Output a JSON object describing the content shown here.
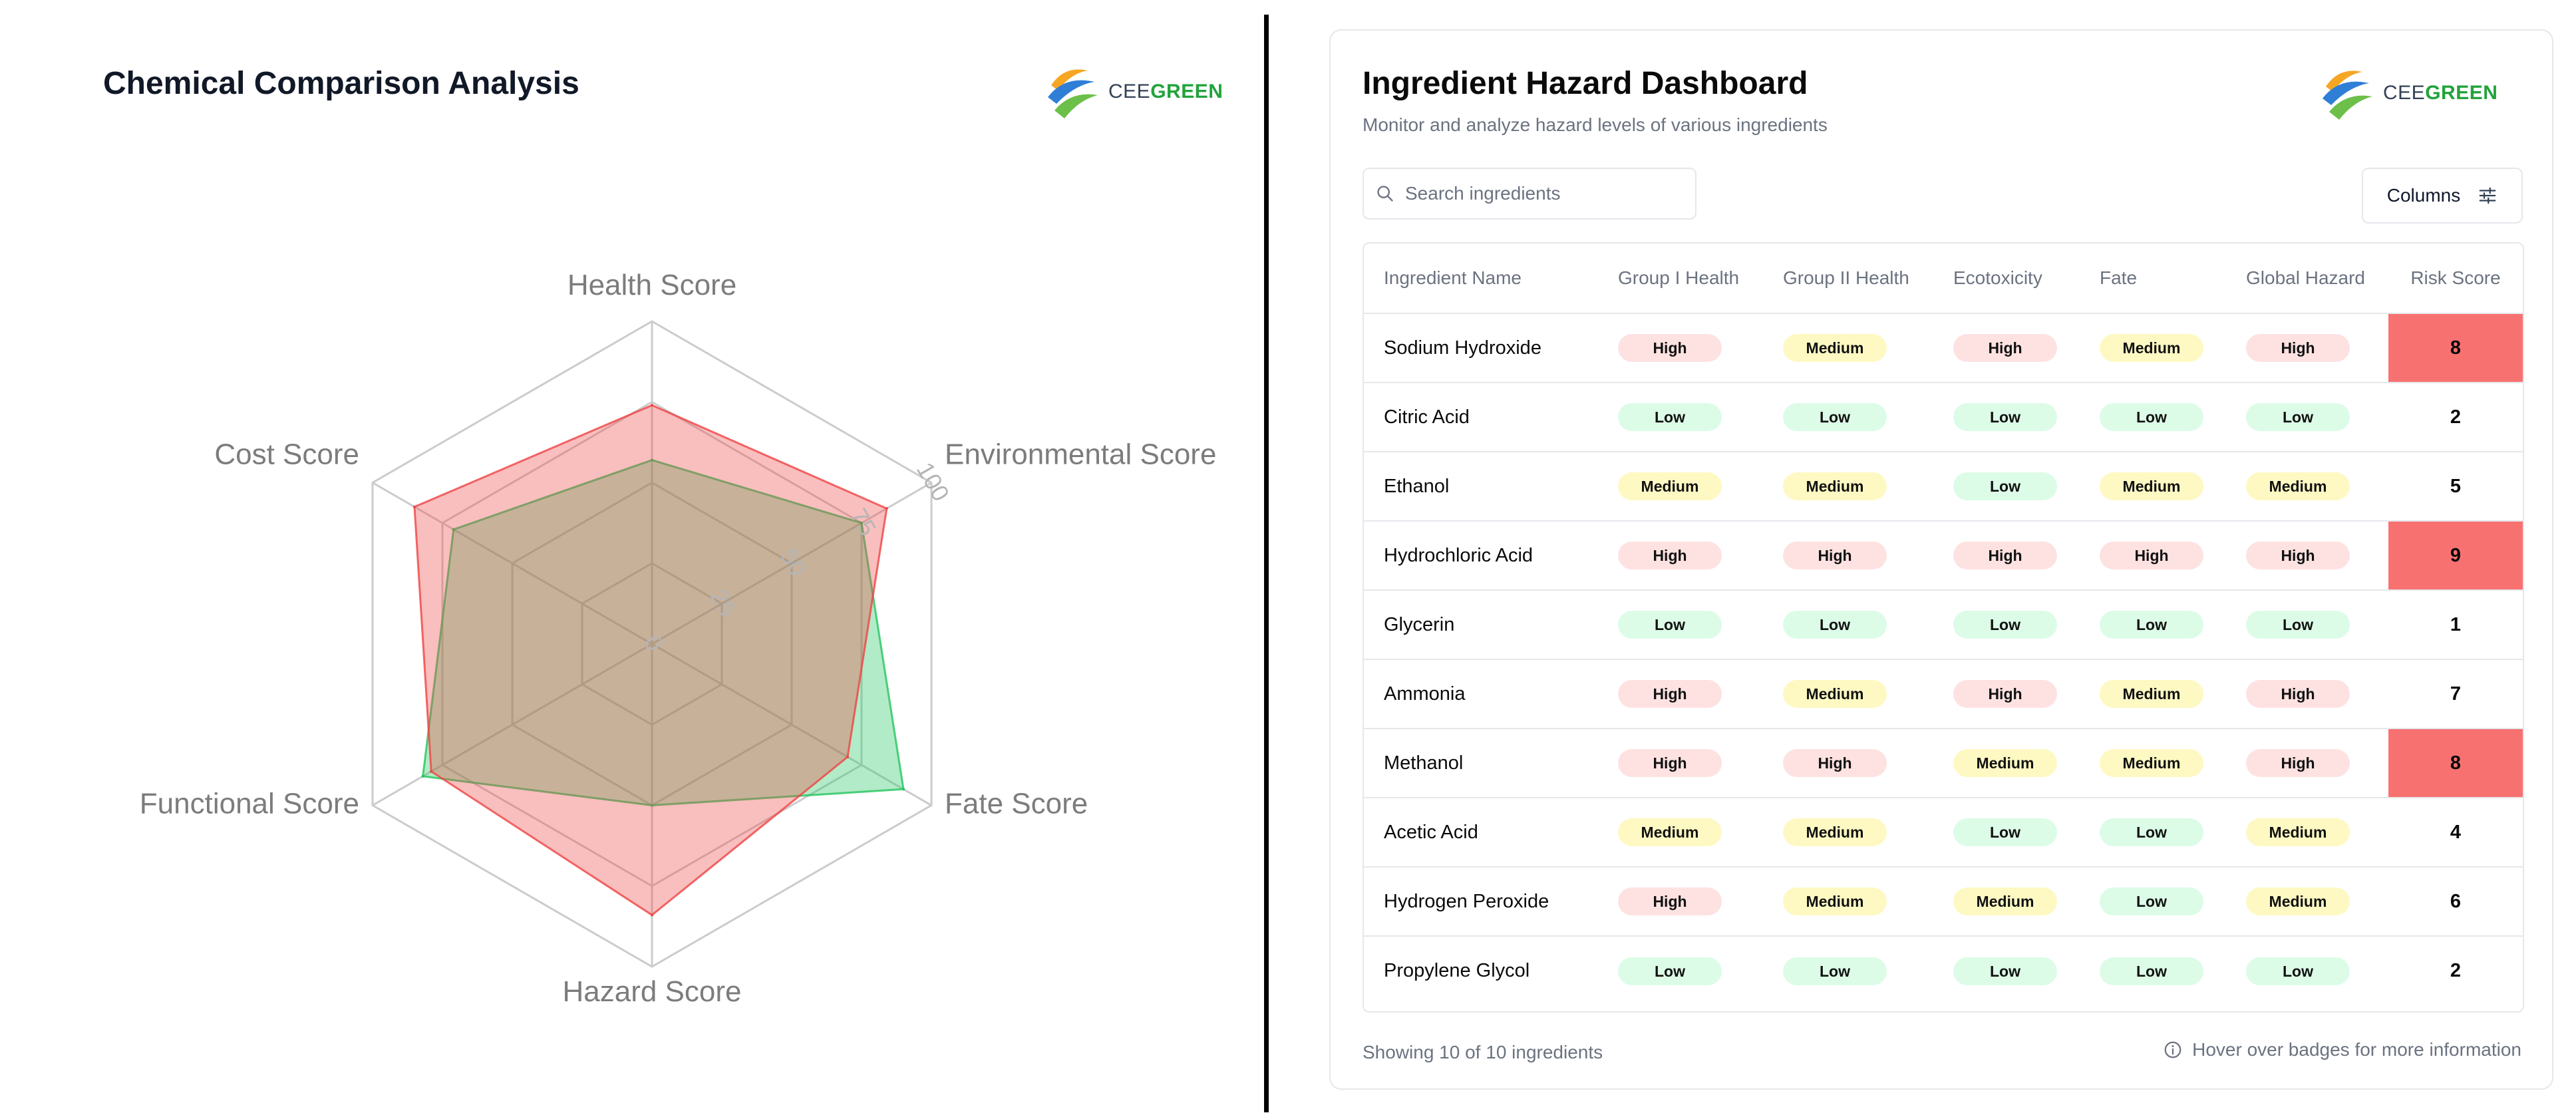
{
  "left": {
    "title": "Chemical Comparison Analysis",
    "logo": {
      "text_a": "CEE",
      "text_b": "GREEN",
      "colors": [
        "#f5a623",
        "#2f7fd6",
        "#6cc04a"
      ]
    }
  },
  "chart_data": {
    "type": "radar",
    "axes": [
      "Health Score",
      "Environmental Score",
      "Fate Score",
      "Hazard Score",
      "Functional Score",
      "Cost Score"
    ],
    "range": [
      0,
      100
    ],
    "ticks": [
      0,
      25,
      50,
      75,
      100
    ],
    "series": [
      {
        "color": "#22c55e",
        "values": [
          57,
          75,
          90,
          50,
          82,
          71
        ]
      },
      {
        "color": "#ef4444",
        "values": [
          74,
          84,
          70,
          84,
          79,
          85
        ]
      }
    ]
  },
  "dashboard": {
    "title": "Ingredient Hazard Dashboard",
    "subtitle": "Monitor and analyze hazard levels of various ingredients",
    "search": {
      "placeholder": "Search ingredients",
      "value": ""
    },
    "columns_label": "Columns",
    "headers": [
      "Ingredient Name",
      "Group I Health",
      "Group II Health",
      "Ecotoxicity",
      "Fate",
      "Global Hazard",
      "Risk Score"
    ],
    "rows": [
      {
        "name": "Sodium Hydroxide",
        "g1": "High",
        "g2": "Medium",
        "eco": "High",
        "fate": "Medium",
        "global": "High",
        "risk": "8"
      },
      {
        "name": "Citric Acid",
        "g1": "Low",
        "g2": "Low",
        "eco": "Low",
        "fate": "Low",
        "global": "Low",
        "risk": "2"
      },
      {
        "name": "Ethanol",
        "g1": "Medium",
        "g2": "Medium",
        "eco": "Low",
        "fate": "Medium",
        "global": "Medium",
        "risk": "5"
      },
      {
        "name": "Hydrochloric Acid",
        "g1": "High",
        "g2": "High",
        "eco": "High",
        "fate": "High",
        "global": "High",
        "risk": "9"
      },
      {
        "name": "Glycerin",
        "g1": "Low",
        "g2": "Low",
        "eco": "Low",
        "fate": "Low",
        "global": "Low",
        "risk": "1"
      },
      {
        "name": "Ammonia",
        "g1": "High",
        "g2": "Medium",
        "eco": "High",
        "fate": "Medium",
        "global": "High",
        "risk": "7"
      },
      {
        "name": "Methanol",
        "g1": "High",
        "g2": "High",
        "eco": "Medium",
        "fate": "Medium",
        "global": "High",
        "risk": "8"
      },
      {
        "name": "Acetic Acid",
        "g1": "Medium",
        "g2": "Medium",
        "eco": "Low",
        "fate": "Low",
        "global": "Medium",
        "risk": "4"
      },
      {
        "name": "Hydrogen Peroxide",
        "g1": "High",
        "g2": "Medium",
        "eco": "Medium",
        "fate": "Low",
        "global": "Medium",
        "risk": "6"
      },
      {
        "name": "Propylene Glycol",
        "g1": "Low",
        "g2": "Low",
        "eco": "Low",
        "fate": "Low",
        "global": "Low",
        "risk": "2"
      }
    ],
    "footer_left": "Showing 10 of 10 ingredients",
    "footer_right": "Hover over badges for more information",
    "colors": {
      "low": "#dcfce7",
      "medium": "#fef9c3",
      "high": "#fee2e2",
      "risk_hot": "#f87171"
    }
  }
}
